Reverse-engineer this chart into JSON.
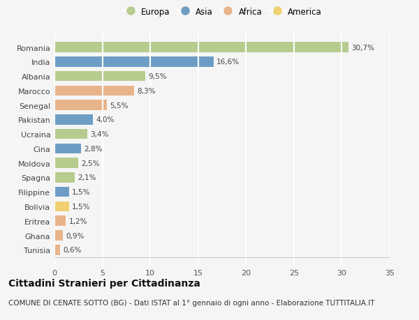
{
  "countries": [
    "Romania",
    "India",
    "Albania",
    "Marocco",
    "Senegal",
    "Pakistan",
    "Ucraina",
    "Cina",
    "Moldova",
    "Spagna",
    "Filippine",
    "Bolivia",
    "Eritrea",
    "Ghana",
    "Tunisia"
  ],
  "values": [
    30.7,
    16.6,
    9.5,
    8.3,
    5.5,
    4.0,
    3.4,
    2.8,
    2.5,
    2.1,
    1.5,
    1.5,
    1.2,
    0.9,
    0.6
  ],
  "labels": [
    "30,7%",
    "16,6%",
    "9,5%",
    "8,3%",
    "5,5%",
    "4,0%",
    "3,4%",
    "2,8%",
    "2,5%",
    "2,1%",
    "1,5%",
    "1,5%",
    "1,2%",
    "0,9%",
    "0,6%"
  ],
  "continents": [
    "Europa",
    "Asia",
    "Europa",
    "Africa",
    "Africa",
    "Asia",
    "Europa",
    "Asia",
    "Europa",
    "Europa",
    "Asia",
    "America",
    "Africa",
    "Africa",
    "Africa"
  ],
  "continent_colors": {
    "Europa": "#b5cc8e",
    "Asia": "#6d9dc5",
    "Africa": "#e8b48a",
    "America": "#f0d070"
  },
  "legend_order": [
    "Europa",
    "Asia",
    "Africa",
    "America"
  ],
  "title": "Cittadini Stranieri per Cittadinanza",
  "subtitle": "COMUNE DI CENATE SOTTO (BG) - Dati ISTAT al 1° gennaio di ogni anno - Elaborazione TUTTITALIA.IT",
  "xlim": [
    0,
    35
  ],
  "xticks": [
    0,
    5,
    10,
    15,
    20,
    25,
    30,
    35
  ],
  "background_color": "#f5f5f5",
  "grid_color": "#ffffff",
  "bar_height": 0.7,
  "title_fontsize": 10,
  "subtitle_fontsize": 7.5
}
